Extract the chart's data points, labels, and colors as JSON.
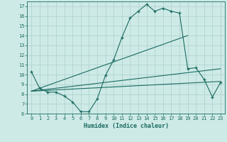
{
  "title": "",
  "xlabel": "Humidex (Indice chaleur)",
  "bg_color": "#ceeae7",
  "grid_color": "#b0d4d0",
  "line_color": "#1a6b60",
  "xlim": [
    -0.5,
    23.5
  ],
  "ylim": [
    6,
    17.5
  ],
  "xticks": [
    0,
    1,
    2,
    3,
    4,
    5,
    6,
    7,
    8,
    9,
    10,
    11,
    12,
    13,
    14,
    15,
    16,
    17,
    18,
    19,
    20,
    21,
    22,
    23
  ],
  "yticks": [
    6,
    7,
    8,
    9,
    10,
    11,
    12,
    13,
    14,
    15,
    16,
    17
  ],
  "line1_x": [
    0,
    1,
    2,
    3,
    4,
    5,
    6,
    7,
    8,
    9,
    10,
    11,
    12,
    13,
    14,
    15,
    16,
    17,
    18,
    19,
    20,
    21,
    22,
    23
  ],
  "line1_y": [
    10.3,
    8.6,
    8.2,
    8.2,
    7.8,
    7.2,
    6.2,
    6.2,
    7.5,
    9.9,
    11.5,
    13.8,
    15.8,
    16.5,
    17.2,
    16.5,
    16.8,
    16.5,
    16.3,
    10.6,
    10.7,
    9.5,
    7.7,
    9.2
  ],
  "line2_x": [
    0,
    19
  ],
  "line2_y": [
    8.3,
    14.0
  ],
  "line3_x": [
    0,
    23
  ],
  "line3_y": [
    8.3,
    9.3
  ],
  "line4_x": [
    0,
    23
  ],
  "line4_y": [
    8.3,
    10.6
  ]
}
